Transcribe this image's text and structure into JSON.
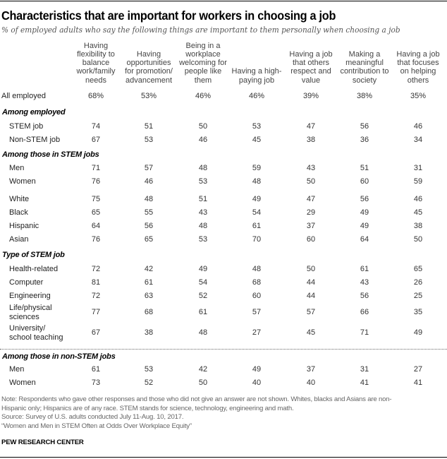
{
  "header": {
    "title": "Characteristics that are important for workers in choosing a job",
    "subtitle": "% of employed adults who say the following things are important to them personally when choosing a job"
  },
  "chart_data": {
    "type": "table",
    "title": "Characteristics that are important for workers in choosing a job",
    "subtitle": "% of employed adults who say the following things are important to them personally when choosing a job",
    "columns": [
      [
        "Having",
        "flexibility to",
        "balance",
        "work/family",
        "needs"
      ],
      [
        "Having",
        "opportunities",
        "for promotion/",
        "advancement"
      ],
      [
        "Being in a",
        "workplace",
        "welcoming for",
        "people like",
        "them"
      ],
      [
        "Having a high-",
        "paying job"
      ],
      [
        "Having a job",
        "that others",
        "respect and",
        "value"
      ],
      [
        "Making a",
        "meaningful",
        "contribution to",
        "society"
      ],
      [
        "Having a job",
        "that focuses",
        "on helping",
        "others"
      ]
    ],
    "column_names": [
      "Having flexibility to balance work/family needs",
      "Having opportunities for promotion/advancement",
      "Being in a workplace welcoming for people like them",
      "Having a high-paying job",
      "Having a job that others respect and value",
      "Making a meaningful contribution to society",
      "Having a job that focuses on helping others"
    ],
    "total_row": {
      "label": "All employed",
      "values": [
        "68%",
        "53%",
        "46%",
        "46%",
        "39%",
        "38%",
        "35%"
      ]
    },
    "sections": [
      {
        "heading": "Among employed",
        "rows": [
          {
            "label": [
              "STEM job"
            ],
            "values": [
              74,
              51,
              50,
              53,
              47,
              56,
              46
            ]
          },
          {
            "label": [
              "Non-STEM job"
            ],
            "values": [
              67,
              53,
              46,
              45,
              38,
              36,
              34
            ]
          }
        ]
      },
      {
        "heading": "Among those in STEM jobs",
        "rows": [
          {
            "label": [
              "Men"
            ],
            "values": [
              71,
              57,
              48,
              59,
              43,
              51,
              31
            ]
          },
          {
            "label": [
              "Women"
            ],
            "values": [
              76,
              46,
              53,
              48,
              50,
              60,
              59
            ]
          },
          {
            "label": [
              "White"
            ],
            "values": [
              75,
              48,
              51,
              49,
              47,
              56,
              46
            ]
          },
          {
            "label": [
              "Black"
            ],
            "values": [
              65,
              55,
              43,
              54,
              29,
              49,
              45
            ]
          },
          {
            "label": [
              "Hispanic"
            ],
            "values": [
              64,
              56,
              48,
              61,
              37,
              49,
              38
            ]
          },
          {
            "label": [
              "Asian"
            ],
            "values": [
              76,
              65,
              53,
              70,
              60,
              64,
              50
            ]
          }
        ]
      },
      {
        "heading": "Type of STEM job",
        "rows": [
          {
            "label": [
              "Health-related"
            ],
            "values": [
              72,
              42,
              49,
              48,
              50,
              61,
              65
            ]
          },
          {
            "label": [
              "Computer"
            ],
            "values": [
              81,
              61,
              54,
              68,
              44,
              43,
              26
            ]
          },
          {
            "label": [
              "Engineering"
            ],
            "values": [
              72,
              63,
              52,
              60,
              44,
              56,
              25
            ]
          },
          {
            "label": [
              "Life/physical",
              "sciences"
            ],
            "values": [
              77,
              68,
              61,
              57,
              57,
              66,
              35
            ]
          },
          {
            "label": [
              "University/",
              "school teaching"
            ],
            "values": [
              67,
              38,
              48,
              27,
              45,
              71,
              49
            ]
          }
        ]
      },
      {
        "heading": "Among those in non-STEM jobs",
        "rows": [
          {
            "label": [
              "Men"
            ],
            "values": [
              61,
              53,
              42,
              49,
              37,
              31,
              27
            ]
          },
          {
            "label": [
              "Women"
            ],
            "values": [
              73,
              52,
              50,
              40,
              40,
              41,
              41
            ]
          }
        ]
      }
    ]
  },
  "footer": {
    "note_lines": [
      "Note: Respondents who gave other responses and those who did not give an answer are not shown. Whites, blacks and Asians are non-",
      "Hispanic only; Hispanics are of any race. STEM stands for science, technology, engineering and math.",
      "Source: Survey of U.S. adults conducted July 11-Aug. 10, 2017.",
      "“Women and Men in STEM Often at Odds Over Workplace Equity”"
    ],
    "brand": "PEW RESEARCH CENTER"
  }
}
